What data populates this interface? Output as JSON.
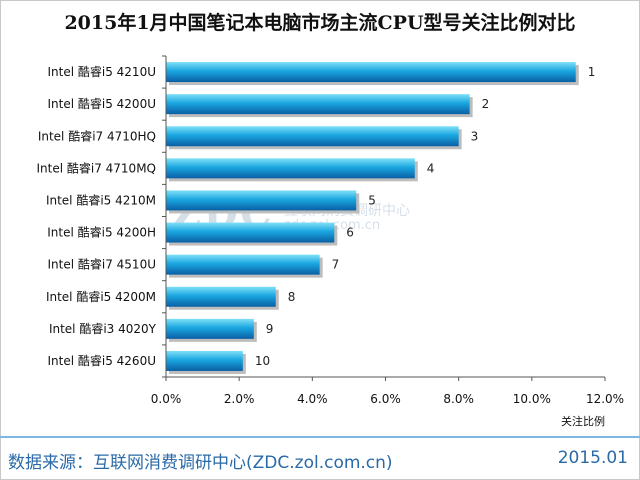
{
  "title": "2015年1月中国笔记本电脑市场主流CPU型号关注比例对比",
  "footer": {
    "source": "数据来源：互联网消费调研中心(ZDC.zol.com.cn)",
    "date": "2015.01"
  },
  "watermark": {
    "logo": "ZDC",
    "cn": "互联网消费调研中心",
    "url": "zdc.zol.com.cn"
  },
  "colors": {
    "bar_light": "#7fe0f7",
    "bar_mid": "#1aa6e0",
    "bar_dark": "#0a5fa4",
    "axis": "#555555",
    "grid": "#bbbbbb"
  },
  "chart_data": {
    "type": "bar",
    "orientation": "horizontal",
    "title": "2015年1月中国笔记本电脑市场主流CPU型号关注比例对比",
    "xlabel": "关注比例",
    "ylabel": "",
    "xlim": [
      0,
      12
    ],
    "x_ticks": [
      "0.0%",
      "2.0%",
      "4.0%",
      "6.0%",
      "8.0%",
      "10.0%",
      "12.0%"
    ],
    "grid": false,
    "categories": [
      "Intel 酷睿i5 4210U",
      "Intel 酷睿i5 4200U",
      "Intel 酷睿i7 4710HQ",
      "Intel 酷睿i7 4710MQ",
      "Intel 酷睿i5 4210M",
      "Intel 酷睿i5 4200H",
      "Intel 酷睿i7 4510U",
      "Intel 酷睿i5 4200M",
      "Intel 酷睿i3 4020Y",
      "Intel 酷睿i5 4260U"
    ],
    "values": [
      11.2,
      8.3,
      8.0,
      6.8,
      5.2,
      4.6,
      4.2,
      3.0,
      2.4,
      2.1
    ],
    "data_labels": [
      "1",
      "2",
      "3",
      "4",
      "5",
      "6",
      "7",
      "8",
      "9",
      "10"
    ]
  }
}
